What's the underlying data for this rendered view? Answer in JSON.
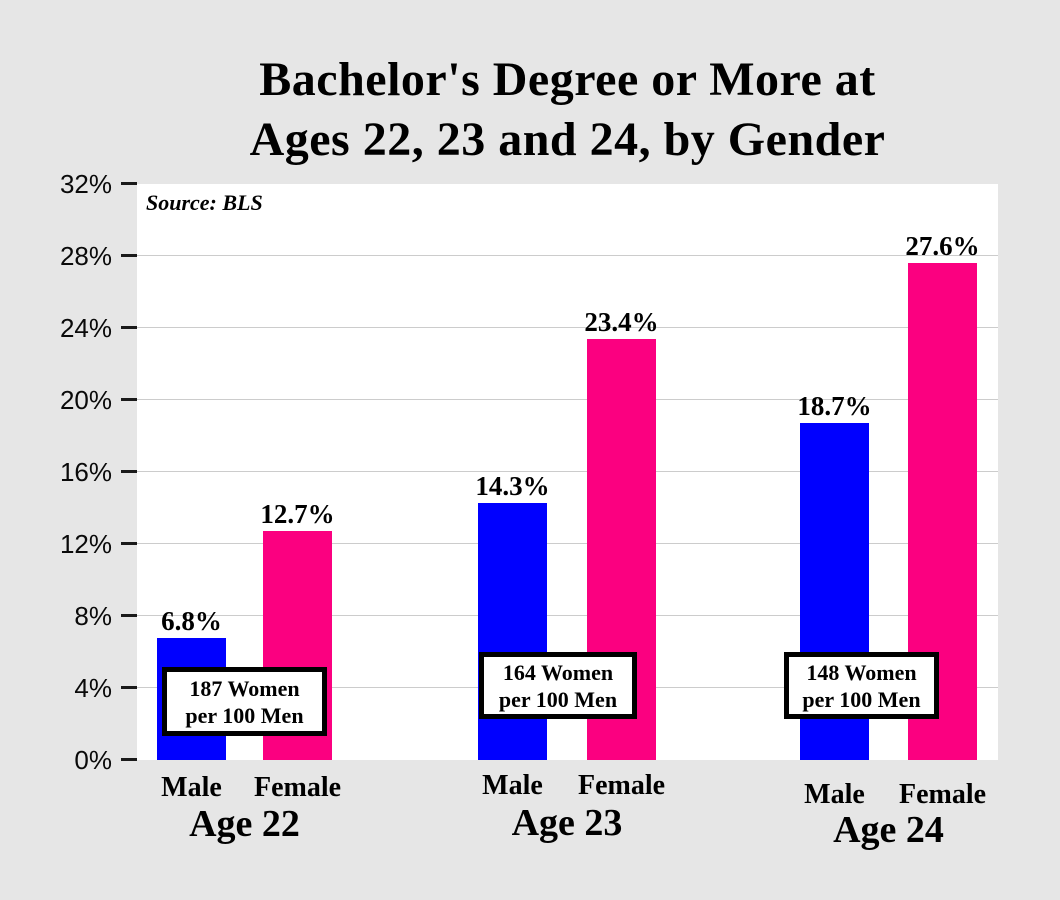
{
  "page": {
    "background": "#E6E6E6",
    "plot_background": "#FFFFFF",
    "gridline_color": "#CCCCCC"
  },
  "title": {
    "line1": "Bachelor's Degree or More at",
    "line2": "Ages 22, 23 and 24, by Gender"
  },
  "source_note": "Source: BLS",
  "chart_data": {
    "type": "bar",
    "title": "Bachelor's Degree or More at Ages 22, 23 and 24, by Gender",
    "source": "Source: BLS",
    "ylabel": "",
    "xlabel": "",
    "ylim": [
      0,
      32
    ],
    "ytick_step": 4,
    "ytick_labels": [
      "0%",
      "4%",
      "8%",
      "12%",
      "16%",
      "20%",
      "24%",
      "28%",
      "32%"
    ],
    "grid": true,
    "legend": "none",
    "colors": {
      "male": "#0000FF",
      "female": "#FB0080"
    },
    "categories": [
      "Age 22",
      "Age 23",
      "Age 24"
    ],
    "series": [
      {
        "name": "Male",
        "values": [
          6.8,
          14.3,
          18.7
        ]
      },
      {
        "name": "Female",
        "values": [
          12.7,
          23.4,
          27.6
        ]
      }
    ],
    "groups": [
      {
        "label": "Age 22",
        "bars": [
          {
            "name": "Male",
            "series": "male",
            "value": 6.8,
            "display": "6.8%"
          },
          {
            "name": "Female",
            "series": "female",
            "value": 12.7,
            "display": "12.7%"
          }
        ],
        "annotation": {
          "line1": "187 Women",
          "line2": "per 100 Men"
        }
      },
      {
        "label": "Age 23",
        "bars": [
          {
            "name": "Male",
            "series": "male",
            "value": 14.3,
            "display": "14.3%"
          },
          {
            "name": "Female",
            "series": "female",
            "value": 23.4,
            "display": "23.4%"
          }
        ],
        "annotation": {
          "line1": "164 Women",
          "line2": "per 100 Men"
        }
      },
      {
        "label": "Age 24",
        "bars": [
          {
            "name": "Male",
            "series": "male",
            "value": 18.7,
            "display": "18.7%"
          },
          {
            "name": "Female",
            "series": "female",
            "value": 27.6,
            "display": "27.6%"
          }
        ],
        "annotation": {
          "line1": "148 Women",
          "line2": "per 100 Men"
        }
      }
    ]
  }
}
